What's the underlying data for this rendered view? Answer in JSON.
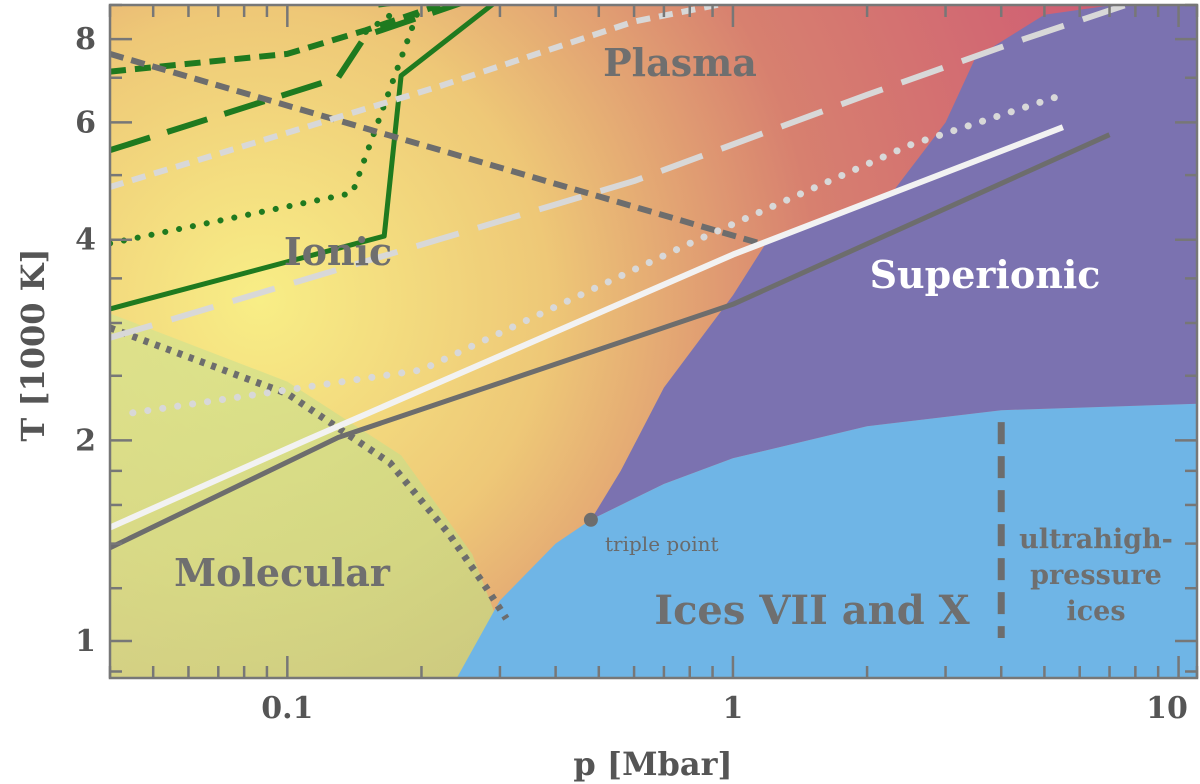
{
  "chart_data": {
    "type": "line",
    "xlabel": "p [Mbar]",
    "ylabel": "T [1000 K]",
    "xscale": "log",
    "yscale": "log",
    "xlim": [
      0.04,
      11
    ],
    "ylim": [
      0.88,
      9
    ],
    "xticks": [
      {
        "v": 0.1,
        "label": "0.1"
      },
      {
        "v": 1,
        "label": "1"
      },
      {
        "v": 10,
        "label": "10"
      }
    ],
    "yticks": [
      {
        "v": 1,
        "label": "1"
      },
      {
        "v": 2,
        "label": "2"
      },
      {
        "v": 4,
        "label": "4"
      },
      {
        "v": 6,
        "label": "6"
      },
      {
        "v": 8,
        "label": "8"
      }
    ],
    "colors": {
      "plasma": "#d4697a",
      "ionic": "#f2c46c",
      "molecular": "#c8d986",
      "superionic": "#7b72b0",
      "ices": "#6fb5e6",
      "green": "#1f7a1f",
      "gray": "#6d6d6d",
      "white": "#f2f2f2",
      "lightgray": "#d8d8d8"
    },
    "regions": {
      "plasma": "Plasma",
      "ionic": "Ionic",
      "molecular": "Molecular",
      "superionic": "Superionic",
      "ices": "Ices VII and X",
      "ultra_1": "ultrahigh-",
      "ultra_2": "pressure",
      "ultra_3": "ices"
    },
    "triple_point": {
      "label": "triple point",
      "x": 0.48,
      "y": 1.52
    },
    "phase_boundaries": {
      "ice_melting": [
        [
          0.24,
          0.88
        ],
        [
          0.3,
          1.15
        ],
        [
          0.4,
          1.4
        ],
        [
          0.48,
          1.52
        ],
        [
          0.7,
          1.72
        ],
        [
          1.0,
          1.88
        ],
        [
          2.0,
          2.1
        ],
        [
          4.0,
          2.22
        ],
        [
          11,
          2.27
        ]
      ],
      "superionic_top": [
        [
          0.48,
          1.52
        ],
        [
          0.56,
          1.8
        ],
        [
          0.7,
          2.4
        ],
        [
          1.0,
          3.3
        ],
        [
          1.2,
          4.0
        ],
        [
          1.6,
          4.3
        ],
        [
          2.3,
          4.75
        ],
        [
          3.0,
          6.0
        ],
        [
          3.5,
          7.5
        ],
        [
          5.0,
          8.7
        ],
        [
          9.0,
          9.2
        ]
      ]
    },
    "series": [
      {
        "style": "green-solid-1",
        "points": [
          [
            0.04,
            3.15
          ],
          [
            0.165,
            4.05
          ],
          [
            0.18,
            7.05
          ],
          [
            0.3,
            9.2
          ]
        ]
      },
      {
        "style": "green-solid-2",
        "points": [
          [
            0.16,
            9.0
          ],
          [
            0.21,
            9.2
          ]
        ]
      },
      {
        "style": "green-longdash",
        "points": [
          [
            0.04,
            5.45
          ],
          [
            0.13,
            7.0
          ],
          [
            0.15,
            8.1
          ],
          [
            0.25,
            9.1
          ]
        ]
      },
      {
        "style": "green-shortdash",
        "points": [
          [
            0.04,
            7.15
          ],
          [
            0.1,
            7.6
          ],
          [
            0.15,
            8.25
          ],
          [
            0.22,
            9.0
          ]
        ]
      },
      {
        "style": "green-dotted-a",
        "points": [
          [
            0.04,
            3.95
          ],
          [
            0.14,
            4.7
          ],
          [
            0.2,
            9.1
          ]
        ]
      },
      {
        "style": "green-dotted-b",
        "points": [
          [
            0.15,
            8.2
          ],
          [
            0.175,
            8.8
          ]
        ]
      },
      {
        "style": "gray-shortdash",
        "points": [
          [
            0.04,
            7.6
          ],
          [
            1.15,
            3.95
          ]
        ]
      },
      {
        "style": "gray-dotted-curve",
        "points": [
          [
            0.04,
            2.95
          ],
          [
            0.1,
            2.35
          ],
          [
            0.17,
            1.85
          ],
          [
            0.23,
            1.45
          ],
          [
            0.28,
            1.2
          ],
          [
            0.31,
            1.08
          ]
        ]
      },
      {
        "style": "gray-solid",
        "points": [
          [
            0.04,
            1.38
          ],
          [
            0.13,
            2.02
          ],
          [
            1.0,
            3.2
          ],
          [
            7.0,
            5.75
          ]
        ]
      },
      {
        "style": "white-solid",
        "points": [
          [
            0.04,
            1.48
          ],
          [
            0.11,
            2.0
          ],
          [
            1.0,
            3.8
          ],
          [
            5.5,
            5.9
          ]
        ]
      },
      {
        "style": "lightgray-dotted",
        "points": [
          [
            0.045,
            2.2
          ],
          [
            0.2,
            2.55
          ],
          [
            0.8,
            3.95
          ],
          [
            2.5,
            5.55
          ],
          [
            5.5,
            6.6
          ]
        ]
      },
      {
        "style": "lightgray-shortdash",
        "points": [
          [
            0.04,
            4.8
          ],
          [
            0.22,
            6.8
          ],
          [
            0.6,
            8.5
          ],
          [
            1.0,
            9.1
          ]
        ]
      },
      {
        "style": "lightgray-longdash",
        "points": [
          [
            0.04,
            2.85
          ],
          [
            0.6,
            4.9
          ],
          [
            2.0,
            6.6
          ],
          [
            4.5,
            8.0
          ],
          [
            8.0,
            9.1
          ]
        ]
      }
    ]
  }
}
